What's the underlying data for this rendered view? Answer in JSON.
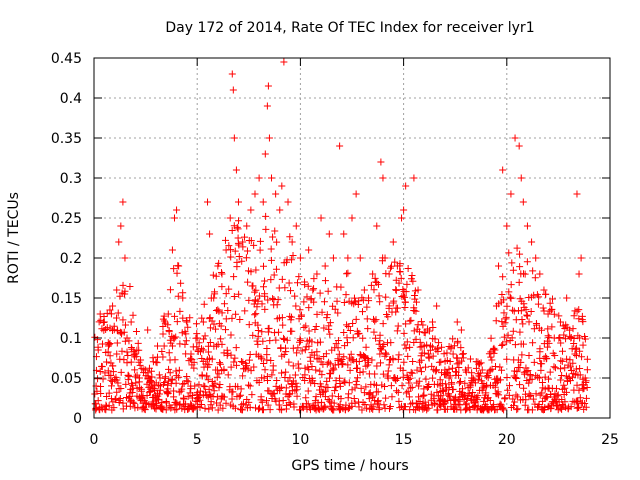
{
  "chart_data": {
    "type": "scatter",
    "title": "Day 172 of 2014, Rate Of TEC Index for receiver lyr1",
    "xlabel": "GPS time / hours",
    "ylabel": "ROTI / TECUs",
    "xlim": [
      0,
      25
    ],
    "ylim": [
      0,
      0.45
    ],
    "xticks": [
      0,
      5,
      10,
      15,
      20,
      25
    ],
    "xtick_labels": [
      "0",
      "5",
      "10",
      "15",
      "20",
      "25"
    ],
    "yticks": [
      0,
      0.05,
      0.1,
      0.15,
      0.2,
      0.25,
      0.3,
      0.35,
      0.4,
      0.45
    ],
    "ytick_labels": [
      "0",
      "0.05",
      "0.1",
      "0.15",
      "0.2",
      "0.25",
      "0.3",
      "0.35",
      "0.4",
      "0.45"
    ],
    "grid": true,
    "marker": "+",
    "color": "#ff0000",
    "series": [
      {
        "name": "lyr1",
        "points": [
          [
            0.1,
            0.04
          ],
          [
            0.3,
            0.13
          ],
          [
            0.5,
            0.12
          ],
          [
            0.7,
            0.09
          ],
          [
            0.9,
            0.14
          ],
          [
            1.1,
            0.16
          ],
          [
            1.2,
            0.22
          ],
          [
            1.3,
            0.24
          ],
          [
            1.4,
            0.27
          ],
          [
            1.5,
            0.2
          ],
          [
            1.6,
            0.1
          ],
          [
            1.8,
            0.12
          ],
          [
            2.0,
            0.08
          ],
          [
            2.2,
            0.05
          ],
          [
            2.5,
            0.06
          ],
          [
            2.6,
            0.11
          ],
          [
            2.8,
            0.04
          ],
          [
            3.0,
            0.07
          ],
          [
            3.2,
            0.05
          ],
          [
            3.4,
            0.09
          ],
          [
            3.6,
            0.13
          ],
          [
            3.8,
            0.21
          ],
          [
            3.9,
            0.25
          ],
          [
            4.0,
            0.26
          ],
          [
            4.1,
            0.19
          ],
          [
            4.3,
            0.15
          ],
          [
            4.5,
            0.12
          ],
          [
            4.7,
            0.08
          ],
          [
            5.0,
            0.1
          ],
          [
            5.3,
            0.12
          ],
          [
            5.5,
            0.27
          ],
          [
            5.6,
            0.23
          ],
          [
            5.8,
            0.15
          ],
          [
            6.0,
            0.19
          ],
          [
            6.2,
            0.18
          ],
          [
            6.4,
            0.21
          ],
          [
            6.6,
            0.25
          ],
          [
            6.7,
            0.43
          ],
          [
            6.75,
            0.41
          ],
          [
            6.8,
            0.35
          ],
          [
            6.9,
            0.31
          ],
          [
            7.0,
            0.27
          ],
          [
            7.2,
            0.22
          ],
          [
            7.4,
            0.24
          ],
          [
            7.6,
            0.26
          ],
          [
            7.8,
            0.28
          ],
          [
            8.0,
            0.3
          ],
          [
            8.2,
            0.27
          ],
          [
            8.3,
            0.33
          ],
          [
            8.4,
            0.39
          ],
          [
            8.5,
            0.35
          ],
          [
            8.45,
            0.415
          ],
          [
            8.6,
            0.3
          ],
          [
            8.8,
            0.28
          ],
          [
            9.0,
            0.26
          ],
          [
            9.1,
            0.29
          ],
          [
            9.2,
            0.445
          ],
          [
            9.4,
            0.27
          ],
          [
            9.6,
            0.22
          ],
          [
            9.8,
            0.24
          ],
          [
            10.0,
            0.2
          ],
          [
            10.2,
            0.17
          ],
          [
            10.4,
            0.21
          ],
          [
            10.6,
            0.16
          ],
          [
            10.8,
            0.18
          ],
          [
            11.0,
            0.25
          ],
          [
            11.2,
            0.19
          ],
          [
            11.4,
            0.23
          ],
          [
            11.6,
            0.2
          ],
          [
            11.9,
            0.34
          ],
          [
            12.1,
            0.23
          ],
          [
            12.3,
            0.2
          ],
          [
            12.5,
            0.25
          ],
          [
            12.7,
            0.28
          ],
          [
            12.9,
            0.2
          ],
          [
            13.1,
            0.16
          ],
          [
            13.3,
            0.15
          ],
          [
            13.5,
            0.18
          ],
          [
            13.7,
            0.24
          ],
          [
            13.9,
            0.32
          ],
          [
            14.0,
            0.3
          ],
          [
            14.1,
            0.2
          ],
          [
            14.3,
            0.18
          ],
          [
            14.5,
            0.22
          ],
          [
            14.7,
            0.19
          ],
          [
            14.9,
            0.25
          ],
          [
            15.0,
            0.26
          ],
          [
            15.1,
            0.29
          ],
          [
            15.5,
            0.3
          ],
          [
            15.7,
            0.16
          ],
          [
            16.0,
            0.09
          ],
          [
            16.2,
            0.08
          ],
          [
            16.4,
            0.12
          ],
          [
            16.6,
            0.14
          ],
          [
            16.8,
            0.07
          ],
          [
            17.0,
            0.06
          ],
          [
            17.2,
            0.05
          ],
          [
            17.4,
            0.08
          ],
          [
            17.6,
            0.12
          ],
          [
            17.8,
            0.11
          ],
          [
            18.0,
            0.06
          ],
          [
            18.3,
            0.05
          ],
          [
            18.6,
            0.07
          ],
          [
            18.9,
            0.04
          ],
          [
            19.2,
            0.06
          ],
          [
            19.5,
            0.14
          ],
          [
            19.6,
            0.19
          ],
          [
            19.8,
            0.31
          ],
          [
            20.0,
            0.24
          ],
          [
            20.2,
            0.28
          ],
          [
            20.4,
            0.35
          ],
          [
            20.6,
            0.34
          ],
          [
            20.7,
            0.3
          ],
          [
            20.8,
            0.27
          ],
          [
            21.0,
            0.24
          ],
          [
            21.2,
            0.22
          ],
          [
            21.4,
            0.2
          ],
          [
            21.6,
            0.18
          ],
          [
            21.8,
            0.16
          ],
          [
            22.0,
            0.13
          ],
          [
            22.3,
            0.1
          ],
          [
            22.6,
            0.12
          ],
          [
            22.9,
            0.15
          ],
          [
            23.1,
            0.1
          ],
          [
            23.3,
            0.08
          ],
          [
            23.4,
            0.28
          ],
          [
            23.5,
            0.18
          ],
          [
            23.6,
            0.2
          ],
          [
            23.8,
            0.05
          ]
        ],
        "bulk": {
          "hour_step": 0.04,
          "envelope": [
            [
              0,
              0.1
            ],
            [
              1,
              0.13
            ],
            [
              1.5,
              0.2
            ],
            [
              2,
              0.1
            ],
            [
              2.5,
              0.06
            ],
            [
              3,
              0.08
            ],
            [
              3.5,
              0.12
            ],
            [
              4,
              0.19
            ],
            [
              4.5,
              0.12
            ],
            [
              5,
              0.11
            ],
            [
              5.5,
              0.14
            ],
            [
              6,
              0.18
            ],
            [
              6.5,
              0.2
            ],
            [
              7,
              0.22
            ],
            [
              7.5,
              0.2
            ],
            [
              8,
              0.21
            ],
            [
              8.5,
              0.23
            ],
            [
              9,
              0.2
            ],
            [
              9.5,
              0.2
            ],
            [
              10,
              0.15
            ],
            [
              10.5,
              0.15
            ],
            [
              11,
              0.16
            ],
            [
              11.5,
              0.14
            ],
            [
              12,
              0.16
            ],
            [
              12.5,
              0.17
            ],
            [
              13,
              0.14
            ],
            [
              13.5,
              0.15
            ],
            [
              14,
              0.19
            ],
            [
              14.5,
              0.17
            ],
            [
              15,
              0.19
            ],
            [
              15.5,
              0.15
            ],
            [
              16,
              0.1
            ],
            [
              16.5,
              0.1
            ],
            [
              17,
              0.08
            ],
            [
              17.5,
              0.09
            ],
            [
              18,
              0.07
            ],
            [
              18.5,
              0.07
            ],
            [
              19,
              0.06
            ],
            [
              19.5,
              0.12
            ],
            [
              20,
              0.18
            ],
            [
              20.5,
              0.2
            ],
            [
              21,
              0.18
            ],
            [
              21.5,
              0.16
            ],
            [
              22,
              0.14
            ],
            [
              22.5,
              0.12
            ],
            [
              23,
              0.11
            ],
            [
              23.5,
              0.13
            ],
            [
              23.9,
              0.1
            ]
          ],
          "floor": 0.01
        }
      }
    ]
  }
}
